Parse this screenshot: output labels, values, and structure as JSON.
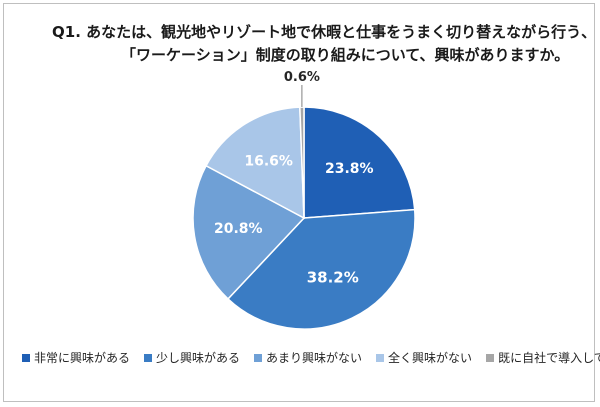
{
  "chart_data": {
    "type": "pie",
    "title_line1": "Q1.  あなたは、観光地やリゾート地で休暇と仕事をうまく切り替えながら行う、",
    "title_line2": "「ワーケーション」制度の取り組みについて、興味がありますか。",
    "slices": [
      {
        "label": "非常に興味がある",
        "value": 23.8,
        "value_label": "23.8%",
        "color": "#1f5fb5",
        "label_color": "#ffffff"
      },
      {
        "label": "少し興味がある",
        "value": 38.2,
        "value_label": "38.2%",
        "color": "#3a7cc4",
        "label_color": "#ffffff"
      },
      {
        "label": "あまり興味がない",
        "value": 20.8,
        "value_label": "20.8%",
        "color": "#6fa0d6",
        "label_color": "#ffffff"
      },
      {
        "label": "全く興味がない",
        "value": 16.6,
        "value_label": "16.6%",
        "color": "#a9c6e8",
        "label_color": "#ffffff"
      },
      {
        "label": "既に自社で導入している",
        "value": 0.6,
        "value_label": "0.6%",
        "color": "#a6a6a6",
        "label_color": "#262626"
      }
    ],
    "start_angle": "12 o'clock",
    "direction": "clockwise",
    "legend_position": "bottom"
  }
}
